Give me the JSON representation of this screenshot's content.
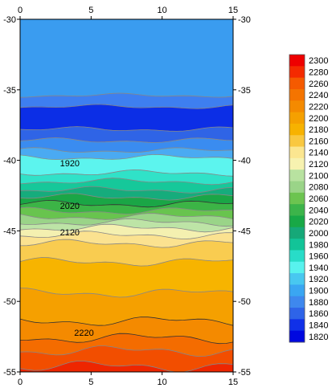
{
  "chart_data": {
    "type": "heatmap",
    "subtype": "filled-contour",
    "title": "",
    "xlabel": "",
    "ylabel": "",
    "xlim": [
      0,
      15
    ],
    "ylim": [
      -55,
      -30
    ],
    "x_ticks": [
      0,
      5,
      10,
      15
    ],
    "y_ticks": [
      -30,
      -35,
      -40,
      -45,
      -50,
      -55
    ],
    "tick_labels_top": [
      "0",
      "5",
      "10",
      "15"
    ],
    "tick_labels_bottom": [
      "0",
      "5",
      "10",
      "15"
    ],
    "tick_labels_left": [
      "-30",
      "-35",
      "-40",
      "-45",
      "-50",
      "-55"
    ],
    "tick_labels_right": [
      "-30",
      "-35",
      "-40",
      "-45",
      "-50",
      "-55"
    ],
    "grid": false,
    "legend": "colorbar-right",
    "colorbar": {
      "levels": [
        2300,
        2280,
        2260,
        2240,
        2220,
        2200,
        2180,
        2160,
        2140,
        2120,
        2100,
        2080,
        2060,
        2040,
        2020,
        2000,
        1980,
        1960,
        1940,
        1920,
        1900,
        1880,
        1860,
        1840,
        1820
      ],
      "labels": [
        "2300",
        "2280",
        "2260",
        "2240",
        "2220",
        "2200",
        "2180",
        "2160",
        "2140",
        "2120",
        "2100",
        "2080",
        "2060",
        "2040",
        "2020",
        "2000",
        "1980",
        "1960",
        "1940",
        "1920",
        "1900",
        "1880",
        "1860",
        "1840",
        "1820"
      ],
      "colors": [
        "#ee0000",
        "#f42a00",
        "#f55a00",
        "#f47400",
        "#f48a00",
        "#f5a000",
        "#f7b200",
        "#f9c840",
        "#fbe690",
        "#f7f2b0",
        "#b8e2a0",
        "#9ad488",
        "#6cc450",
        "#3cb44a",
        "#18a846",
        "#16a878",
        "#12c498",
        "#28dcc8",
        "#58f2ee",
        "#48c8f0",
        "#3aa6f2",
        "#3e88ee",
        "#2e64e8",
        "#1030e8",
        "#0008e0"
      ]
    },
    "contour_labels": [
      {
        "value": "1920",
        "x": 3.5,
        "y": -40.2
      },
      {
        "value": "2020",
        "x": 3.5,
        "y": -43.2
      },
      {
        "value": "2120",
        "x": 3.5,
        "y": -45.1
      },
      {
        "value": "2220",
        "x": 4.5,
        "y": -52.2
      }
    ],
    "bands": [
      {
        "value": 1900,
        "color": "#3a9cf0",
        "y_lo": -35.4,
        "y_hi": -30
      },
      {
        "value": 1880,
        "color": "#3e7ff0",
        "y_lo": -36.2,
        "y_hi": -35.4
      },
      {
        "value": 1850,
        "color": "#0c2ee6",
        "y_lo": -37.8,
        "y_hi": -36.2
      },
      {
        "value": 1880,
        "color": "#2f64e6",
        "y_lo": -38.6,
        "y_hi": -37.8
      },
      {
        "value": 1900,
        "color": "#3a8cf0",
        "y_lo": -39.3,
        "y_hi": -38.6
      },
      {
        "value": 1920,
        "color": "#4aaaf2",
        "y_lo": -39.8,
        "y_hi": -39.3
      },
      {
        "value": 1940,
        "color": "#5cf4ee",
        "y_lo": -40.9,
        "y_hi": -39.8
      },
      {
        "value": 1960,
        "color": "#30e2c8",
        "y_lo": -41.5,
        "y_hi": -40.9
      },
      {
        "value": 1980,
        "color": "#16c89a",
        "y_lo": -42.1,
        "y_hi": -41.5
      },
      {
        "value": 2000,
        "color": "#16ac7c",
        "y_lo": -42.6,
        "y_hi": -42.1
      },
      {
        "value": 2020,
        "color": "#1aa646",
        "y_lo": -43.1,
        "y_hi": -42.6
      },
      {
        "value": 2040,
        "color": "#3cb446",
        "y_lo": -43.6,
        "y_hi": -43.1
      },
      {
        "value": 2060,
        "color": "#68c44e",
        "y_lo": -44.0,
        "y_hi": -43.6
      },
      {
        "value": 2080,
        "color": "#9ad488",
        "y_lo": -44.4,
        "y_hi": -44.0
      },
      {
        "value": 2100,
        "color": "#bde4a6",
        "y_lo": -44.8,
        "y_hi": -44.4
      },
      {
        "value": 2120,
        "color": "#f4f0b0",
        "y_lo": -45.3,
        "y_hi": -44.8
      },
      {
        "value": 2140,
        "color": "#fbe290",
        "y_lo": -45.9,
        "y_hi": -45.3
      },
      {
        "value": 2160,
        "color": "#f9cc50",
        "y_lo": -47.2,
        "y_hi": -45.9
      },
      {
        "value": 2180,
        "color": "#f7b400",
        "y_lo": -49.4,
        "y_hi": -47.2
      },
      {
        "value": 2200,
        "color": "#f5a000",
        "y_lo": -51.4,
        "y_hi": -49.4
      },
      {
        "value": 2220,
        "color": "#f48a00",
        "y_lo": -52.6,
        "y_hi": -51.4
      },
      {
        "value": 2240,
        "color": "#f46c00",
        "y_lo": -53.5,
        "y_hi": -52.6
      },
      {
        "value": 2260,
        "color": "#f24e00",
        "y_lo": -54.6,
        "y_hi": -53.5
      },
      {
        "value": 2280,
        "color": "#ee2600",
        "y_lo": -55,
        "y_hi": -54.6
      }
    ]
  }
}
